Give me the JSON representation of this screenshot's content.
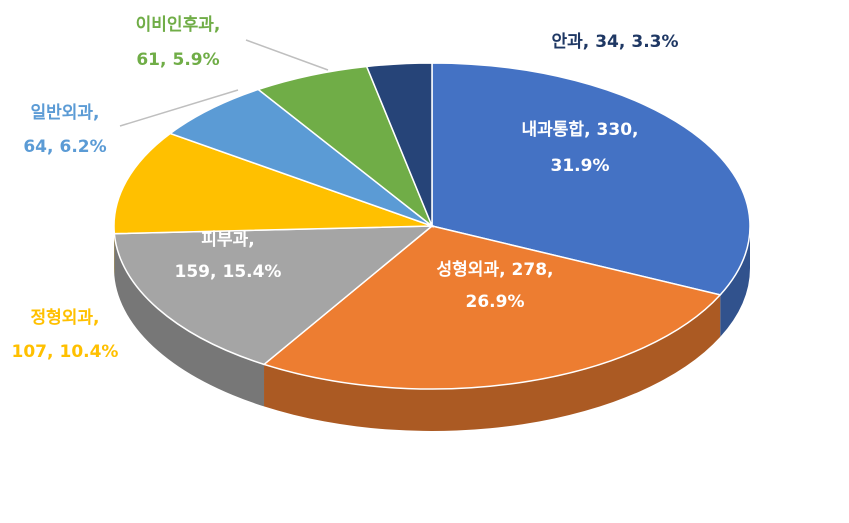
{
  "chart_data": {
    "type": "pie",
    "categories": [
      "내과통합",
      "성형외과",
      "피부과",
      "정형외과",
      "일반외과",
      "이비인후과",
      "안과"
    ],
    "values": [
      330,
      278,
      159,
      107,
      64,
      61,
      34
    ],
    "percents": [
      31.9,
      26.9,
      15.4,
      10.4,
      6.2,
      5.9,
      3.3
    ],
    "percent_labels": [
      "31.9%",
      "26.9%",
      "15.4%",
      "10.4%",
      "6.2%",
      "5.9%",
      "3.3%"
    ],
    "label_separator": ",",
    "colors": [
      "#4472c4",
      "#ed7d31",
      "#a5a5a5",
      "#ffc000",
      "#5b9bd5",
      "#70ad47",
      "#264478"
    ]
  }
}
